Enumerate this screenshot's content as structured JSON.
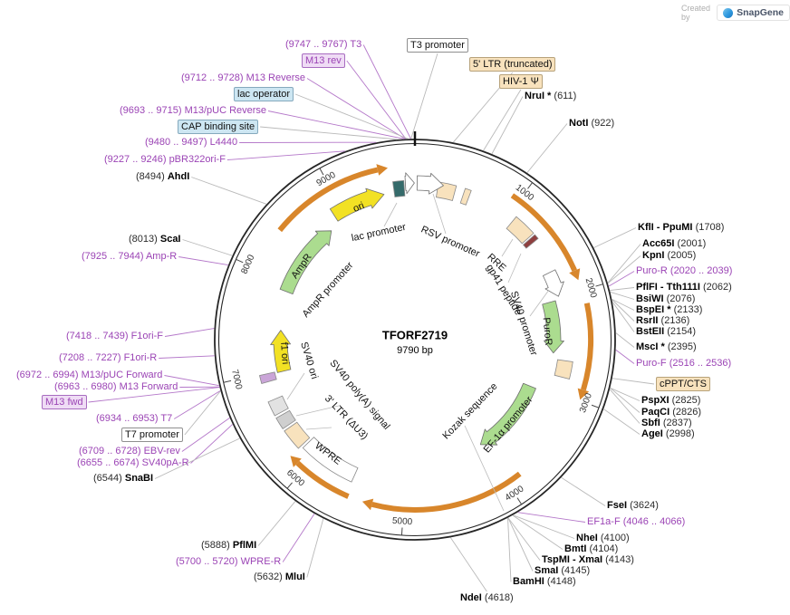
{
  "watermark": {
    "created_by": "Created by",
    "brand": "SnapGene"
  },
  "plasmid": {
    "name": "TFORF2719",
    "size": "9790 bp"
  },
  "ticks": [
    "1000",
    "2000",
    "3000",
    "4000",
    "5000",
    "6000",
    "7000",
    "8000",
    "9000"
  ],
  "outer_labels": [
    {
      "pos": "(9747 .. 9767)",
      "name": "T3",
      "type": "primer"
    },
    {
      "pos": "",
      "name": "M13 rev",
      "type": "primer-box"
    },
    {
      "pos": "(9712 .. 9728)",
      "name": "M13 Reverse",
      "type": "primer"
    },
    {
      "pos": "",
      "name": "lac operator",
      "type": "feature-box-blue"
    },
    {
      "pos": "(9693 .. 9715)",
      "name": "M13/pUC Reverse",
      "type": "primer"
    },
    {
      "pos": "",
      "name": "CAP binding site",
      "type": "feature-box-blue"
    },
    {
      "pos": "(9480 .. 9497)",
      "name": "L4440",
      "type": "primer"
    },
    {
      "pos": "(9227 .. 9246)",
      "name": "pBR322ori-F",
      "type": "primer"
    },
    {
      "pos": "(8494)",
      "name": "AhdI",
      "type": "enzyme"
    },
    {
      "pos": "(8013)",
      "name": "ScaI",
      "type": "enzyme"
    },
    {
      "pos": "(7925 .. 7944)",
      "name": "Amp-R",
      "type": "primer"
    },
    {
      "pos": "(7418 .. 7439)",
      "name": "F1ori-F",
      "type": "primer"
    },
    {
      "pos": "(7208 .. 7227)",
      "name": "F1ori-R",
      "type": "primer"
    },
    {
      "pos": "(6972 .. 6994)",
      "name": "M13/pUC Forward",
      "type": "primer"
    },
    {
      "pos": "(6963 .. 6980)",
      "name": "M13 Forward",
      "type": "primer"
    },
    {
      "pos": "",
      "name": "M13 fwd",
      "type": "primer-box"
    },
    {
      "pos": "(6934 .. 6953)",
      "name": "T7",
      "type": "primer"
    },
    {
      "pos": "",
      "name": "T7 promoter",
      "type": "feature-box-white"
    },
    {
      "pos": "(6709 .. 6728)",
      "name": "EBV-rev",
      "type": "primer"
    },
    {
      "pos": "(6655 .. 6674)",
      "name": "SV40pA-R",
      "type": "primer"
    },
    {
      "pos": "(6544)",
      "name": "SnaBI",
      "type": "enzyme"
    },
    {
      "pos": "",
      "name": "T3 promoter",
      "type": "feature-box-white"
    },
    {
      "pos": "",
      "name": "5' LTR (truncated)",
      "type": "feature-box-tan"
    },
    {
      "pos": "",
      "name": "HIV-1 Ψ",
      "type": "feature-box-tan"
    },
    {
      "pos": "(611)",
      "name": "NruI *",
      "type": "enzyme"
    },
    {
      "pos": "(922)",
      "name": "NotI",
      "type": "enzyme"
    },
    {
      "pos": "(1708)",
      "name": "KflI - PpuMI",
      "type": "enzyme"
    },
    {
      "pos": "(2001)",
      "name": "Acc65I",
      "type": "enzyme"
    },
    {
      "pos": "(2005)",
      "name": "KpnI",
      "type": "enzyme"
    },
    {
      "pos": "(2020 .. 2039)",
      "name": "Puro-R",
      "type": "primer"
    },
    {
      "pos": "(2062)",
      "name": "PflFI - Tth111I",
      "type": "enzyme"
    },
    {
      "pos": "(2076)",
      "name": "BsiWI",
      "type": "enzyme"
    },
    {
      "pos": "(2133)",
      "name": "BspEI *",
      "type": "enzyme"
    },
    {
      "pos": "(2136)",
      "name": "RsrII",
      "type": "enzyme"
    },
    {
      "pos": "(2154)",
      "name": "BstEII",
      "type": "enzyme"
    },
    {
      "pos": "(2395)",
      "name": "MscI *",
      "type": "enzyme"
    },
    {
      "pos": "(2516 .. 2536)",
      "name": "Puro-F",
      "type": "primer"
    },
    {
      "pos": "",
      "name": "cPPT/CTS",
      "type": "feature-box-tan"
    },
    {
      "pos": "(2825)",
      "name": "PspXI",
      "type": "enzyme"
    },
    {
      "pos": "(2826)",
      "name": "PaqCI",
      "type": "enzyme"
    },
    {
      "pos": "(2837)",
      "name": "SbfI",
      "type": "enzyme"
    },
    {
      "pos": "(2998)",
      "name": "AgeI",
      "type": "enzyme"
    },
    {
      "pos": "(3624)",
      "name": "FseI",
      "type": "enzyme"
    },
    {
      "pos": "(4046 .. 4066)",
      "name": "EF1a-F",
      "type": "primer"
    },
    {
      "pos": "(4100)",
      "name": "NheI",
      "type": "enzyme"
    },
    {
      "pos": "(4104)",
      "name": "BmtI",
      "type": "enzyme"
    },
    {
      "pos": "(4143)",
      "name": "TspMI - XmaI",
      "type": "enzyme"
    },
    {
      "pos": "(4145)",
      "name": "SmaI",
      "type": "enzyme"
    },
    {
      "pos": "(4148)",
      "name": "BamHI",
      "type": "enzyme"
    },
    {
      "pos": "(4618)",
      "name": "NdeI",
      "type": "enzyme"
    },
    {
      "pos": "(5888)",
      "name": "PflMI",
      "type": "enzyme"
    },
    {
      "pos": "(5700 .. 5720)",
      "name": "WPRE-R",
      "type": "primer"
    },
    {
      "pos": "(5632)",
      "name": "MluI",
      "type": "enzyme"
    }
  ],
  "inner_labels": [
    {
      "name": "ori"
    },
    {
      "name": "lac promoter"
    },
    {
      "name": "RSV promoter"
    },
    {
      "name": "RRE"
    },
    {
      "name": "gp41 peptide"
    },
    {
      "name": "SV40 promoter"
    },
    {
      "name": "PuroR"
    },
    {
      "name": "EF-1α promoter"
    },
    {
      "name": "Kozak sequence"
    },
    {
      "name": "WPRE"
    },
    {
      "name": "3' LTR (ΔU3)"
    },
    {
      "name": "SV40 poly(A) signal"
    },
    {
      "name": "SV40 ori"
    },
    {
      "name": "f1 ori"
    },
    {
      "name": "AmpR"
    },
    {
      "name": "AmpR promoter"
    }
  ],
  "colors": {
    "primer_purple": "#9b44b5",
    "enzyme_black": "#111111",
    "orange_arc": "#d8862b",
    "cds_green": "#abdc8f",
    "ori_yellow": "#f2e124",
    "feature_tan": "#f8e2bd",
    "callout_gray": "#b9b9b9"
  }
}
